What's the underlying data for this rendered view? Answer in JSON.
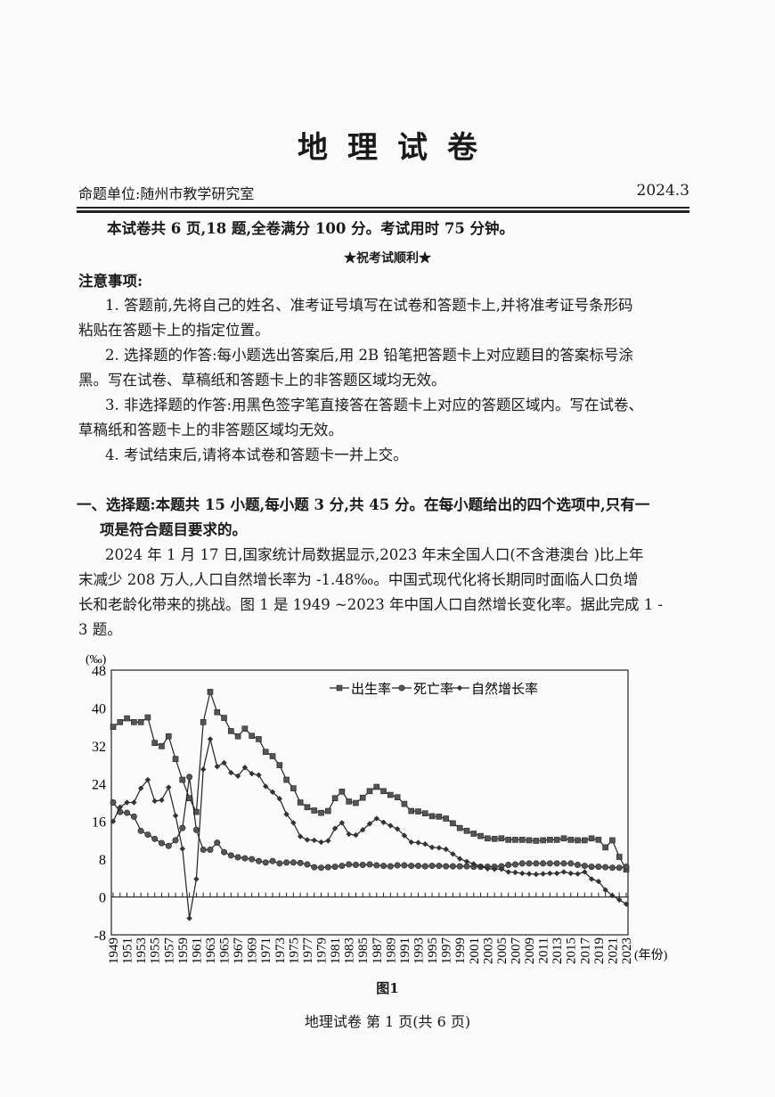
{
  "header": {
    "title": "地理试卷",
    "issuer": "命题单位:随州市教学研究室",
    "date": "2024.3"
  },
  "intro": {
    "summary": "本试卷共 6 页,18 题,全卷满分 100 分。考试用时 75 分钟。",
    "wish": "★祝考试顺利★",
    "notice_title": "注意事项:",
    "notice_lines": [
      "1. 答题前,先将自己的姓名、准考证号填写在试卷和答题卡上,并将准考证号条形码",
      "粘贴在答题卡上的指定位置。",
      "2. 选择题的作答:每小题选出答案后,用 2B 铅笔把答题卡上对应题目的答案标号涂",
      "黑。写在试卷、草稿纸和答题卡上的非答题区域均无效。",
      "3. 非选择题的作答:用黑色签字笔直接答在答题卡上对应的答题区域内。写在试卷、",
      "草稿纸和答题卡上的非答题区域均无效。",
      "4. 考试结束后,请将本试卷和答题卡一并上交。"
    ]
  },
  "section1": {
    "heading_line1": "一、选择题:本题共 15 小题,每小题 3 分,共 45 分。在每小题给出的四个选项中,只有一",
    "heading_line2": "项是符合题目要求的。",
    "passage_lines": [
      "2024 年 1 月 17 日,国家统计局数据显示,2023 年末全国人口(不含港澳台 )比上年",
      "末减少 208 万人,人口自然增长率为 -1.48‰。中国式现代化将长期同时面临人口负增",
      "长和老龄化带来的挑战。图 1 是 1949 ~2023 年中国人口自然增长变化率。据此完成 1 -",
      "3 题。"
    ]
  },
  "figure_caption": "图1",
  "footer": "地理试卷   第 1 页(共 6 页)",
  "chart_data": {
    "type": "line",
    "ylabel": "(‰)",
    "xlabel": "(年份)",
    "ylim": [
      -8,
      48
    ],
    "yticks": [
      -8,
      0,
      8,
      16,
      24,
      32,
      40,
      48
    ],
    "xrange": [
      1949,
      2023
    ],
    "xtick_step": 2,
    "grid": false,
    "legend_position": "top-right",
    "series": [
      {
        "name": "出生率",
        "marker": "square",
        "values": [
          36.0,
          37.0,
          37.8,
          37.0,
          37.0,
          38.0,
          32.6,
          31.9,
          34.0,
          29.2,
          24.8,
          20.9,
          18.0,
          37.0,
          43.4,
          39.1,
          37.9,
          35.1,
          34.0,
          35.6,
          34.1,
          33.4,
          30.7,
          29.8,
          27.9,
          24.8,
          23.0,
          20.0,
          19.0,
          18.3,
          17.8,
          18.2,
          20.9,
          22.3,
          20.2,
          19.9,
          21.0,
          22.4,
          23.3,
          22.4,
          21.6,
          21.1,
          19.7,
          18.2,
          18.1,
          17.7,
          17.1,
          17.0,
          16.6,
          15.6,
          14.6,
          14.0,
          13.4,
          12.9,
          12.4,
          12.3,
          12.4,
          12.1,
          12.1,
          12.1,
          12.0,
          11.9,
          12.0,
          12.1,
          12.1,
          12.4,
          12.1,
          12.0,
          12.0,
          12.4,
          12.1,
          10.5,
          12.0,
          8.5,
          5.8
        ]
      },
      {
        "name": "死亡率",
        "marker": "circle",
        "values": [
          20.0,
          18.0,
          17.8,
          17.0,
          14.0,
          13.2,
          12.3,
          11.4,
          10.8,
          12.0,
          14.6,
          25.4,
          14.2,
          10.0,
          10.0,
          11.5,
          9.5,
          8.8,
          8.4,
          8.2,
          8.0,
          7.6,
          7.3,
          7.6,
          7.1,
          7.3,
          7.3,
          7.2,
          6.9,
          6.3,
          6.2,
          6.3,
          6.4,
          6.6,
          6.9,
          6.8,
          6.8,
          6.9,
          6.7,
          6.6,
          6.5,
          6.7,
          6.7,
          6.6,
          6.6,
          6.5,
          6.6,
          6.6,
          6.5,
          6.5,
          6.5,
          6.5,
          6.4,
          6.4,
          6.4,
          6.4,
          6.5,
          6.8,
          6.9,
          7.1,
          7.1,
          7.1,
          7.1,
          7.1,
          7.1,
          7.1,
          7.1,
          6.8,
          6.6,
          6.4,
          6.4,
          6.3,
          6.2,
          6.2,
          6.4
        ]
      },
      {
        "name": "自然增长率",
        "marker": "diamond",
        "values": [
          16.0,
          19.0,
          20.0,
          20.0,
          23.0,
          24.8,
          20.3,
          20.5,
          23.2,
          17.2,
          10.2,
          -4.5,
          3.8,
          27.0,
          33.4,
          27.6,
          28.4,
          26.3,
          25.6,
          27.4,
          26.1,
          25.8,
          23.4,
          22.2,
          20.8,
          17.5,
          15.7,
          12.8,
          12.1,
          12.0,
          11.6,
          11.9,
          14.5,
          15.7,
          13.3,
          13.1,
          14.2,
          15.5,
          16.6,
          15.8,
          15.1,
          14.4,
          13.0,
          11.6,
          11.5,
          11.2,
          10.5,
          10.4,
          10.1,
          9.1,
          8.1,
          7.5,
          7.0,
          6.5,
          6.0,
          5.9,
          5.9,
          5.3,
          5.2,
          5.0,
          4.9,
          4.8,
          4.9,
          5.0,
          5.0,
          5.3,
          5.0,
          4.9,
          5.3,
          3.8,
          3.3,
          1.5,
          0.3,
          -0.6,
          -1.5
        ]
      }
    ]
  }
}
